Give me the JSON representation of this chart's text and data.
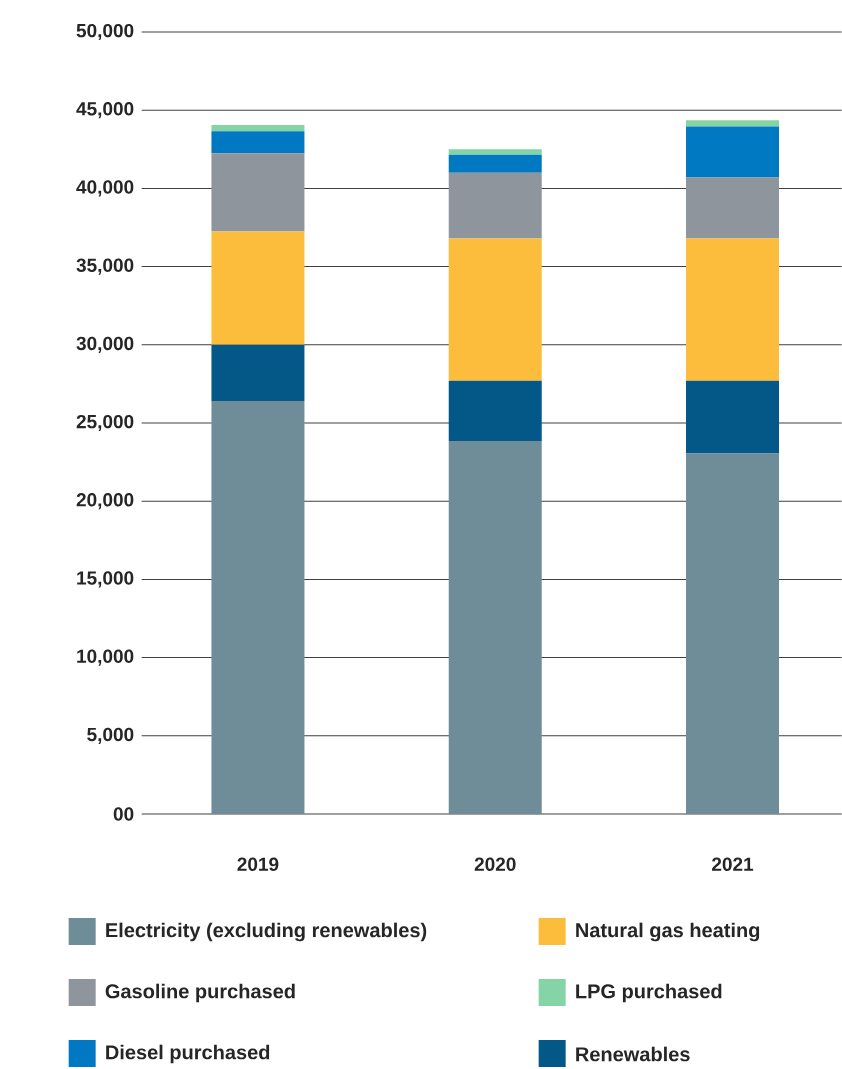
{
  "chart_data": {
    "type": "bar",
    "stacked": true,
    "categories": [
      "2019",
      "2020",
      "2021"
    ],
    "series": [
      {
        "name": "Electricity (excluding renewables)",
        "color": "#6f8d99",
        "values": [
          26400,
          23850,
          23050
        ]
      },
      {
        "name": "Renewables",
        "color": "#035887",
        "values": [
          3600,
          3850,
          4650
        ]
      },
      {
        "name": "Natural gas heating",
        "color": "#fdbd3c",
        "values": [
          7250,
          9100,
          9100
        ]
      },
      {
        "name": "Gasoline purchased",
        "color": "#8e959d",
        "values": [
          5000,
          4200,
          3900
        ]
      },
      {
        "name": "Diesel purchased",
        "color": "#0079c2",
        "values": [
          1400,
          1150,
          3250
        ]
      },
      {
        "name": "LPG purchased",
        "color": "#84d4a5",
        "values": [
          400,
          350,
          400
        ]
      }
    ],
    "ylim": [
      0,
      50000
    ],
    "yticks": [
      {
        "value": 0,
        "label": "00"
      },
      {
        "value": 5000,
        "label": "5,000"
      },
      {
        "value": 10000,
        "label": "10,000"
      },
      {
        "value": 15000,
        "label": "15,000"
      },
      {
        "value": 20000,
        "label": "20,000"
      },
      {
        "value": 25000,
        "label": "25,000"
      },
      {
        "value": 30000,
        "label": "30,000"
      },
      {
        "value": 35000,
        "label": "35,000"
      },
      {
        "value": 40000,
        "label": "40,000"
      },
      {
        "value": 45000,
        "label": "45,000"
      },
      {
        "value": 50000,
        "label": "50,000"
      }
    ],
    "grid": "y",
    "legend": "bottom"
  }
}
